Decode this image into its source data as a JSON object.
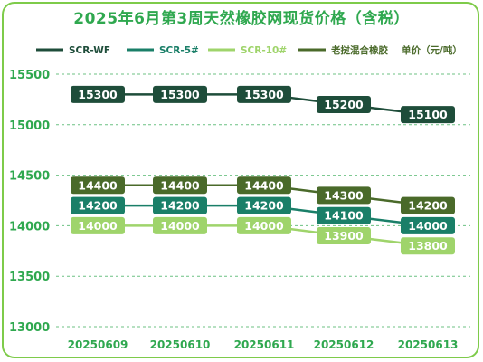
{
  "title": "2025年6月第3周天然橡胶网现货价格（含税）",
  "chart_data": {
    "type": "line",
    "categories": [
      "20250609",
      "20250610",
      "20250611",
      "20250612",
      "20250613"
    ],
    "legend_placement": "top",
    "legend_note": "单价（元/吨）",
    "yticks": [
      "15500",
      "15000",
      "14500",
      "14000",
      "13500",
      "13000"
    ],
    "ylim": [
      13000,
      15500
    ],
    "grid": "horizontal-dashed",
    "series": [
      {
        "name": "SCR-WF",
        "color": "#1e4d3a",
        "values": [
          15300,
          15300,
          15300,
          15200,
          15100
        ]
      },
      {
        "name": "SCR-5#",
        "color": "#1a7f68",
        "values": [
          14200,
          14200,
          14200,
          14100,
          14000
        ]
      },
      {
        "name": "SCR-10#",
        "color": "#9fd46b",
        "values": [
          14000,
          14000,
          14000,
          13900,
          13800
        ]
      },
      {
        "name": "老挝混合橡胶",
        "color": "#4a6a2a",
        "values": [
          14400,
          14400,
          14400,
          14300,
          14200
        ]
      }
    ]
  }
}
